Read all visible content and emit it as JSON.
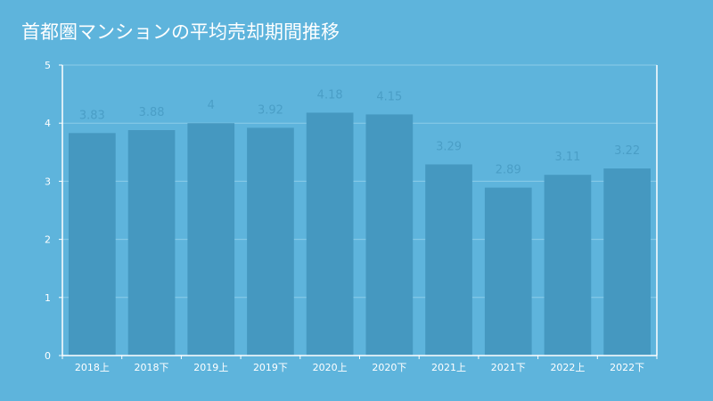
{
  "chart_data": {
    "type": "bar",
    "title": "首都圏マンションの平均売却期間推移",
    "categories": [
      "2018上",
      "2018下",
      "2019上",
      "2019下",
      "2020上",
      "2020下",
      "2021上",
      "2021下",
      "2022上",
      "2022下"
    ],
    "values": [
      3.83,
      3.88,
      4,
      3.92,
      4.18,
      4.15,
      3.29,
      2.89,
      3.11,
      3.22
    ],
    "value_labels": [
      "3.83",
      "3.88",
      "4",
      "3.92",
      "4.18",
      "4.15",
      "3.29",
      "2.89",
      "3.11",
      "3.22"
    ],
    "ylim": [
      0,
      5
    ],
    "yticks": [
      "0",
      "1",
      "2",
      "3",
      "4",
      "5"
    ],
    "grid": true,
    "colors": {
      "background": "#5eb4dc",
      "bar": "#4598c0",
      "data_label": "#4a9ec6",
      "grid": "#8ccbe8",
      "axis": "#ffffff",
      "text": "#ffffff"
    }
  }
}
